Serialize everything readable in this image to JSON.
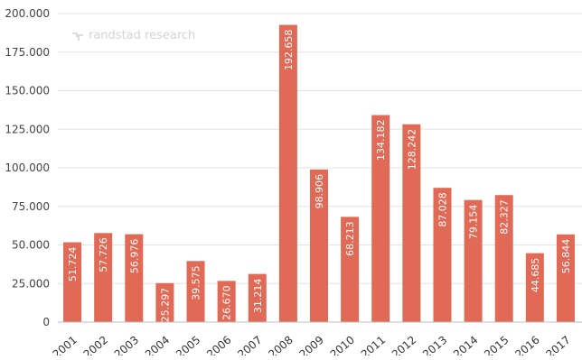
{
  "chart_data": {
    "type": "bar",
    "title": "",
    "xlabel": "",
    "ylabel": "",
    "categories": [
      "2001",
      "2002",
      "2003",
      "2004",
      "2005",
      "2006",
      "2007",
      "2008",
      "2009",
      "2010",
      "2011",
      "2012",
      "2013",
      "2014",
      "2015",
      "2016",
      "2017"
    ],
    "values": [
      51724,
      57726,
      56976,
      25297,
      39575,
      26670,
      31214,
      192658,
      98906,
      68213,
      134182,
      128242,
      87028,
      79154,
      82327,
      44685,
      56844
    ],
    "value_labels": [
      "51.724",
      "57.726",
      "56.976",
      "25.297",
      "39.575",
      "26.670",
      "31.214",
      "192.658",
      "98.906",
      "68.213",
      "134.182",
      "128.242",
      "87.028",
      "79.154",
      "82.327",
      "44.685",
      "56.844"
    ],
    "ylim": [
      0,
      200000
    ],
    "yticks": [
      0,
      25000,
      50000,
      75000,
      100000,
      125000,
      150000,
      175000,
      200000
    ],
    "ytick_labels": [
      "0",
      "25.000",
      "50.000",
      "75.000",
      "100.000",
      "125.000",
      "150.000",
      "175.000",
      "200.000"
    ],
    "grid": "horizontal",
    "legend": "none",
    "colors": {
      "bar": "#e06a55",
      "grid": "#e3e3e3",
      "axis": "#bdbdbd"
    }
  },
  "watermark": {
    "text": "randstad research",
    "icon": "randstad-logo-icon"
  }
}
